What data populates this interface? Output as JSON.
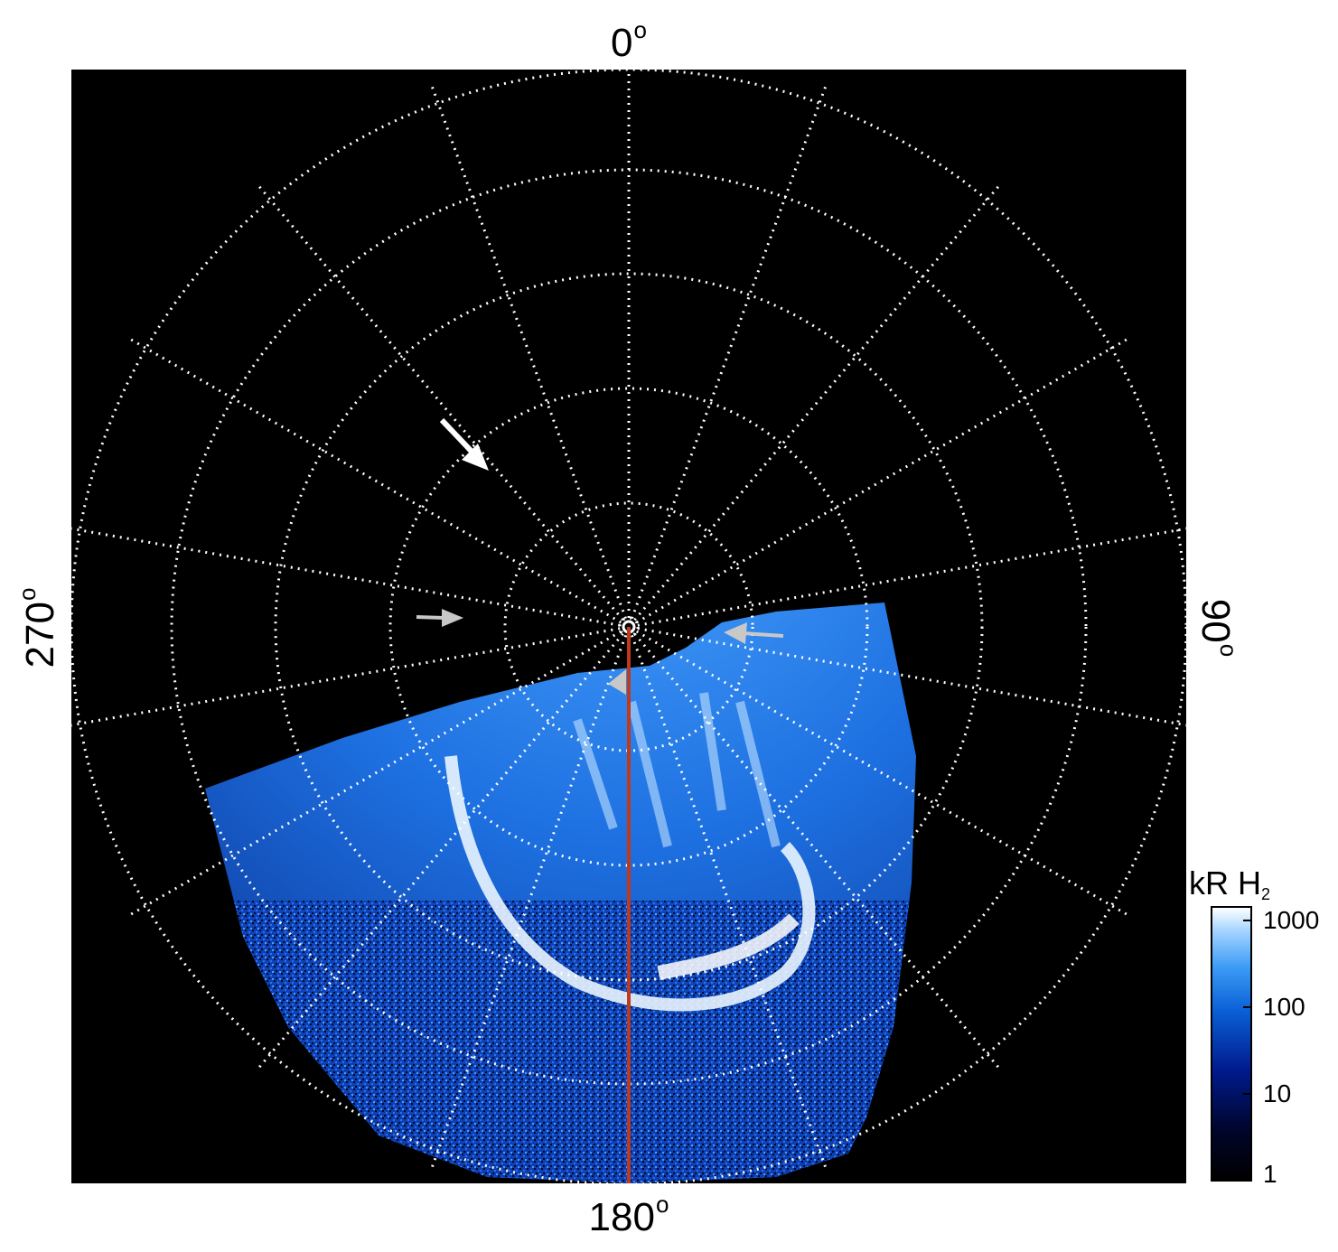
{
  "polar_labels": {
    "top": "0",
    "right": "90",
    "bottom": "180",
    "left": "270",
    "degree_symbol": "o"
  },
  "colorbar": {
    "unit": "kR H",
    "unit_subscript": "2",
    "ticks": [
      "1000",
      "100",
      "10",
      "1"
    ],
    "scale": "log",
    "colors": {
      "low": "#000000",
      "mid_dark": "#001a8c",
      "mid": "#0a5fd6",
      "high": "#a8d6ff",
      "max": "#ffffff"
    }
  },
  "overlay": {
    "grid_style": "dotted white",
    "meridian_color": "#c0391b",
    "arrow_colors": {
      "primary": "#ffffff",
      "secondary": "#c8c8c8"
    }
  }
}
